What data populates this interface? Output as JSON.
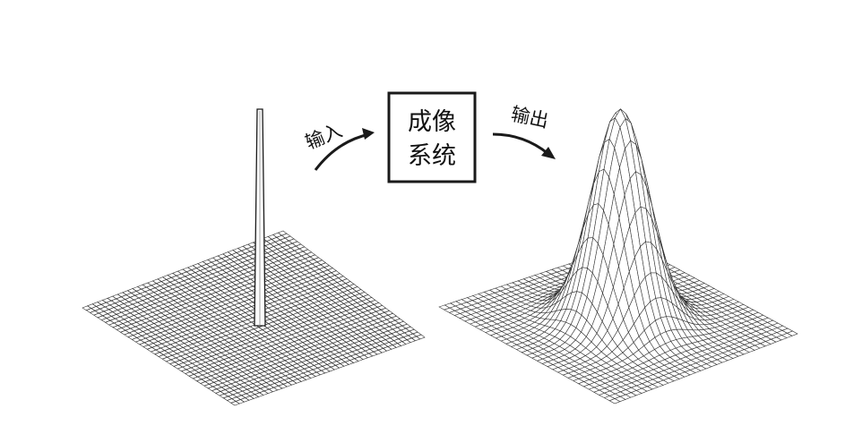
{
  "diagram": {
    "input_label": "输入",
    "system_label_line1": "成像",
    "system_label_line2": "系统",
    "output_label": "输出"
  },
  "colors": {
    "ink": "#1a1a1a",
    "grid": "#333333",
    "background": "#ffffff"
  }
}
